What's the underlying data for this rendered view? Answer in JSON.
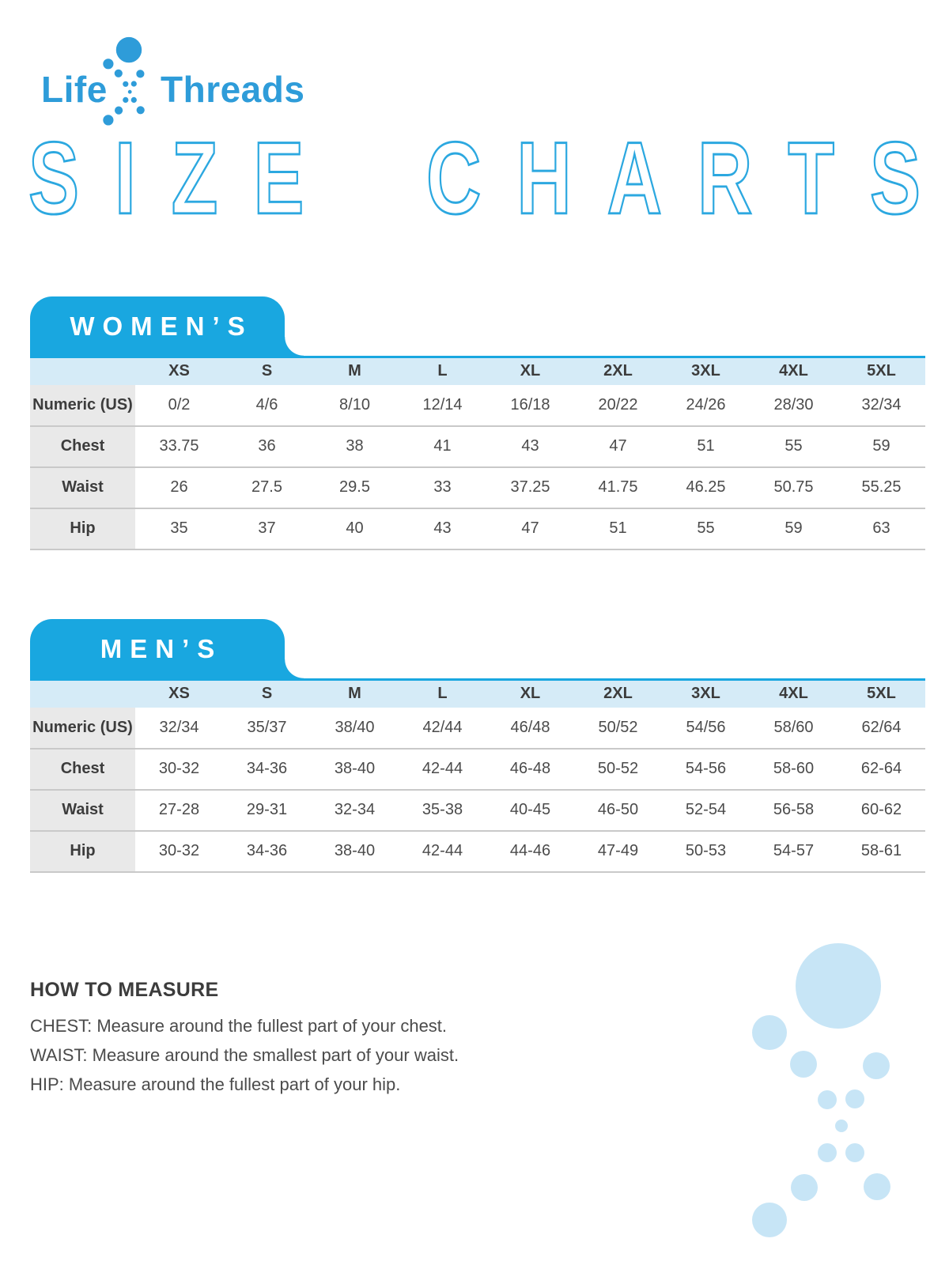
{
  "brand": {
    "logo_left": "Life",
    "logo_right": "Threads"
  },
  "title": {
    "word1": "SIZE",
    "word2": "CHARTS"
  },
  "colors": {
    "brand_blue": "#2E9CD9",
    "tab_blue": "#19A7E0",
    "outline_blue": "#2CA8E0",
    "header_row_blue": "#D5EBF7",
    "pale_dot_blue": "#C7E5F6",
    "label_gray": "#E9E9E9",
    "row_line_gray": "#C9C9C9",
    "text_dark": "#3C3C3C",
    "text_value": "#4B4B4B"
  },
  "icons": {
    "logo_dots": "dna-dot-cluster",
    "decoration_dots": "dna-dot-cluster"
  },
  "sections": [
    {
      "tab_label": "WOMEN’S",
      "size_headers": [
        "XS",
        "S",
        "M",
        "L",
        "XL",
        "2XL",
        "3XL",
        "4XL",
        "5XL"
      ],
      "rows": [
        {
          "label": "Numeric (US)",
          "values": [
            "0/2",
            "4/6",
            "8/10",
            "12/14",
            "16/18",
            "20/22",
            "24/26",
            "28/30",
            "32/34"
          ]
        },
        {
          "label": "Chest",
          "values": [
            "33.75",
            "36",
            "38",
            "41",
            "43",
            "47",
            "51",
            "55",
            "59"
          ]
        },
        {
          "label": "Waist",
          "values": [
            "26",
            "27.5",
            "29.5",
            "33",
            "37.25",
            "41.75",
            "46.25",
            "50.75",
            "55.25"
          ]
        },
        {
          "label": "Hip",
          "values": [
            "35",
            "37",
            "40",
            "43",
            "47",
            "51",
            "55",
            "59",
            "63"
          ]
        }
      ]
    },
    {
      "tab_label": "MEN’S",
      "size_headers": [
        "XS",
        "S",
        "M",
        "L",
        "XL",
        "2XL",
        "3XL",
        "4XL",
        "5XL"
      ],
      "rows": [
        {
          "label": "Numeric (US)",
          "values": [
            "32/34",
            "35/37",
            "38/40",
            "42/44",
            "46/48",
            "50/52",
            "54/56",
            "58/60",
            "62/64"
          ]
        },
        {
          "label": "Chest",
          "values": [
            "30-32",
            "34-36",
            "38-40",
            "42-44",
            "46-48",
            "50-52",
            "54-56",
            "58-60",
            "62-64"
          ]
        },
        {
          "label": "Waist",
          "values": [
            "27-28",
            "29-31",
            "32-34",
            "35-38",
            "40-45",
            "46-50",
            "52-54",
            "56-58",
            "60-62"
          ]
        },
        {
          "label": "Hip",
          "values": [
            "30-32",
            "34-36",
            "38-40",
            "42-44",
            "44-46",
            "47-49",
            "50-53",
            "54-57",
            "58-61"
          ]
        }
      ]
    }
  ],
  "how_to_measure": {
    "heading": "HOW TO MEASURE",
    "lines": [
      "CHEST: Measure around the fullest part of your chest.",
      "WAIST: Measure around the smallest part of your waist.",
      "HIP: Measure around the fullest part of your hip."
    ]
  }
}
